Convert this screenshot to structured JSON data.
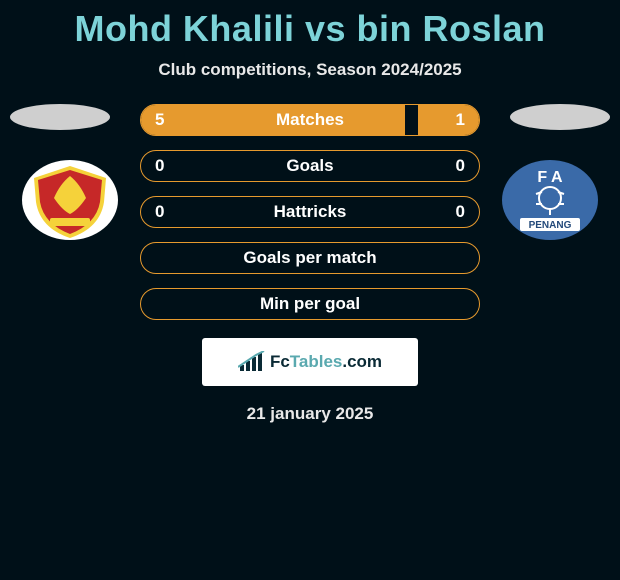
{
  "title": "Mohd Khalili vs bin Roslan",
  "subtitle": "Club competitions, Season 2024/2025",
  "date": "21 january 2025",
  "colors": {
    "background": "#001018",
    "accent": "#7dd3d8",
    "bar_fill": "#e69a2e",
    "bar_border": "#e69a2e",
    "text": "#ffffff"
  },
  "bars": [
    {
      "label": "Matches",
      "left": "5",
      "right": "1",
      "fill_left_pct": 78,
      "fill_right_pct": 18
    },
    {
      "label": "Goals",
      "left": "0",
      "right": "0",
      "fill_left_pct": 0,
      "fill_right_pct": 0
    },
    {
      "label": "Hattricks",
      "left": "0",
      "right": "0",
      "fill_left_pct": 0,
      "fill_right_pct": 0
    },
    {
      "label": "Goals per match",
      "left": "",
      "right": "",
      "fill_left_pct": 0,
      "fill_right_pct": 0
    },
    {
      "label": "Min per goal",
      "left": "",
      "right": "",
      "fill_left_pct": 0,
      "fill_right_pct": 0
    }
  ],
  "brand": {
    "fc": "Fc",
    "tables": "Tables",
    "suffix": ".com"
  },
  "club_left": {
    "bg": "#ffffff",
    "outer_ring": "#f5d23a",
    "inner": "#c62828",
    "accent": "#f5d23a"
  },
  "club_right": {
    "bg": "#3a6aa8",
    "text": "#ffffff",
    "label_top": "F A",
    "label_bottom": "PENANG"
  }
}
